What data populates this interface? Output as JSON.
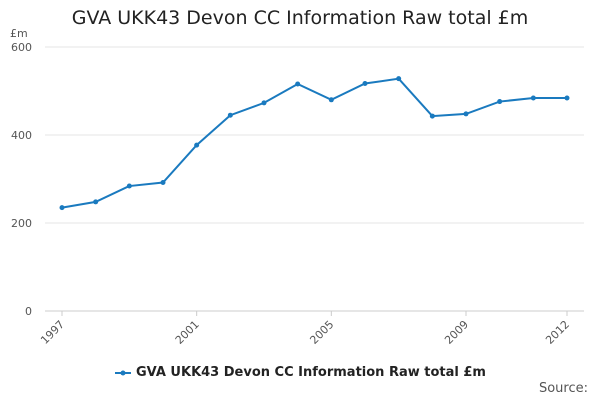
{
  "chart_data": {
    "type": "line",
    "title": "GVA UKK43 Devon CC Information Raw total £m",
    "unit_label": "£m",
    "x": [
      1997,
      1998,
      1999,
      2000,
      2001,
      2002,
      2003,
      2004,
      2005,
      2006,
      2007,
      2008,
      2009,
      2010,
      2011,
      2012
    ],
    "x_tick_labels": [
      "1997",
      "2001",
      "2005",
      "2009",
      "2012"
    ],
    "y_ticks": [
      0,
      200,
      400,
      600
    ],
    "ylim": [
      0,
      600
    ],
    "grid": true,
    "legend_position": "bottom",
    "series": [
      {
        "name": "GVA UKK43 Devon CC Information Raw total £m",
        "color": "#1a7abf",
        "values": [
          235,
          248,
          284,
          292,
          377,
          445,
          473,
          516,
          480,
          517,
          528,
          443,
          448,
          476,
          484,
          484
        ]
      }
    ],
    "source_label": "Source:"
  }
}
